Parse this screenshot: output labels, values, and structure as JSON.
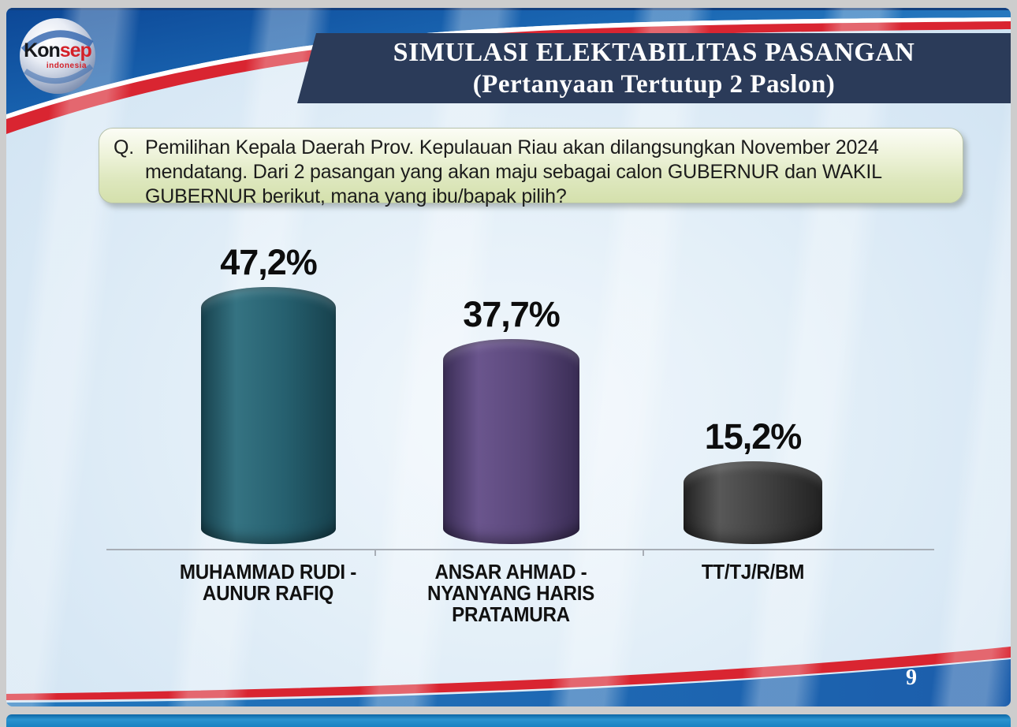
{
  "slide": {
    "logo": {
      "brand_black": "Kon",
      "brand_red": "sep",
      "subtitle": "indonesia"
    },
    "title": {
      "line1": "SIMULASI ELEKTABILITAS PASANGAN",
      "line2": "(Pertanyaan Tertutup 2 Paslon)"
    },
    "question": {
      "prefix": "Q.",
      "text": "Pemilihan Kepala Daerah Prov. Kepulauan Riau akan dilangsungkan November 2024 mendatang. Dari 2 pasangan yang akan maju sebagai calon GUBERNUR dan WAKIL GUBERNUR berikut, mana yang ibu/bapak pilih?"
    },
    "page_number": "9"
  },
  "chart_data": {
    "type": "bar",
    "title": "",
    "xlabel": "",
    "ylabel": "",
    "categories": [
      "MUHAMMAD RUDI - AUNUR RAFIQ",
      "ANSAR AHMAD - NYANYANG HARIS PRATAMURA",
      "TT/TJ/R/BM"
    ],
    "values": [
      47.2,
      37.7,
      15.2
    ],
    "value_labels": [
      "47,2%",
      "37,7%",
      "15,2%"
    ],
    "ylim": [
      0,
      50
    ],
    "grid": false,
    "legend_position": "none",
    "bars": [
      {
        "value": 47.2,
        "value_label": "47,2%",
        "label_lines": "MUHAMMAD RUDI -\nAUNUR RAFIQ",
        "color_dark": "#17414d",
        "color": "#26606f",
        "color_light": "#357382"
      },
      {
        "value": 37.7,
        "value_label": "37,7%",
        "label_lines": "ANSAR AHMAD -\nNYANYANG HARIS\nPRATAMURA",
        "color_dark": "#3a2d55",
        "color": "#5a477a",
        "color_light": "#6a558d"
      },
      {
        "value": 15.2,
        "value_label": "15,2%",
        "label_lines": "TT/TJ/R/BM",
        "color_dark": "#222222",
        "color": "#3f3f3f",
        "color_light": "#585858"
      }
    ]
  },
  "colors": {
    "banner_navy": "#2b3b59",
    "accent_red": "#d92531",
    "royal_blue": "#0c4796",
    "light_band_blue": "#2e86c8",
    "content_bg": "#dbeaf6",
    "question_top": "#fcfdf6",
    "question_bottom": "#d4e0ac",
    "next_slide_blue": "#1a82c2",
    "frame_gray": "#cdcdcd"
  }
}
